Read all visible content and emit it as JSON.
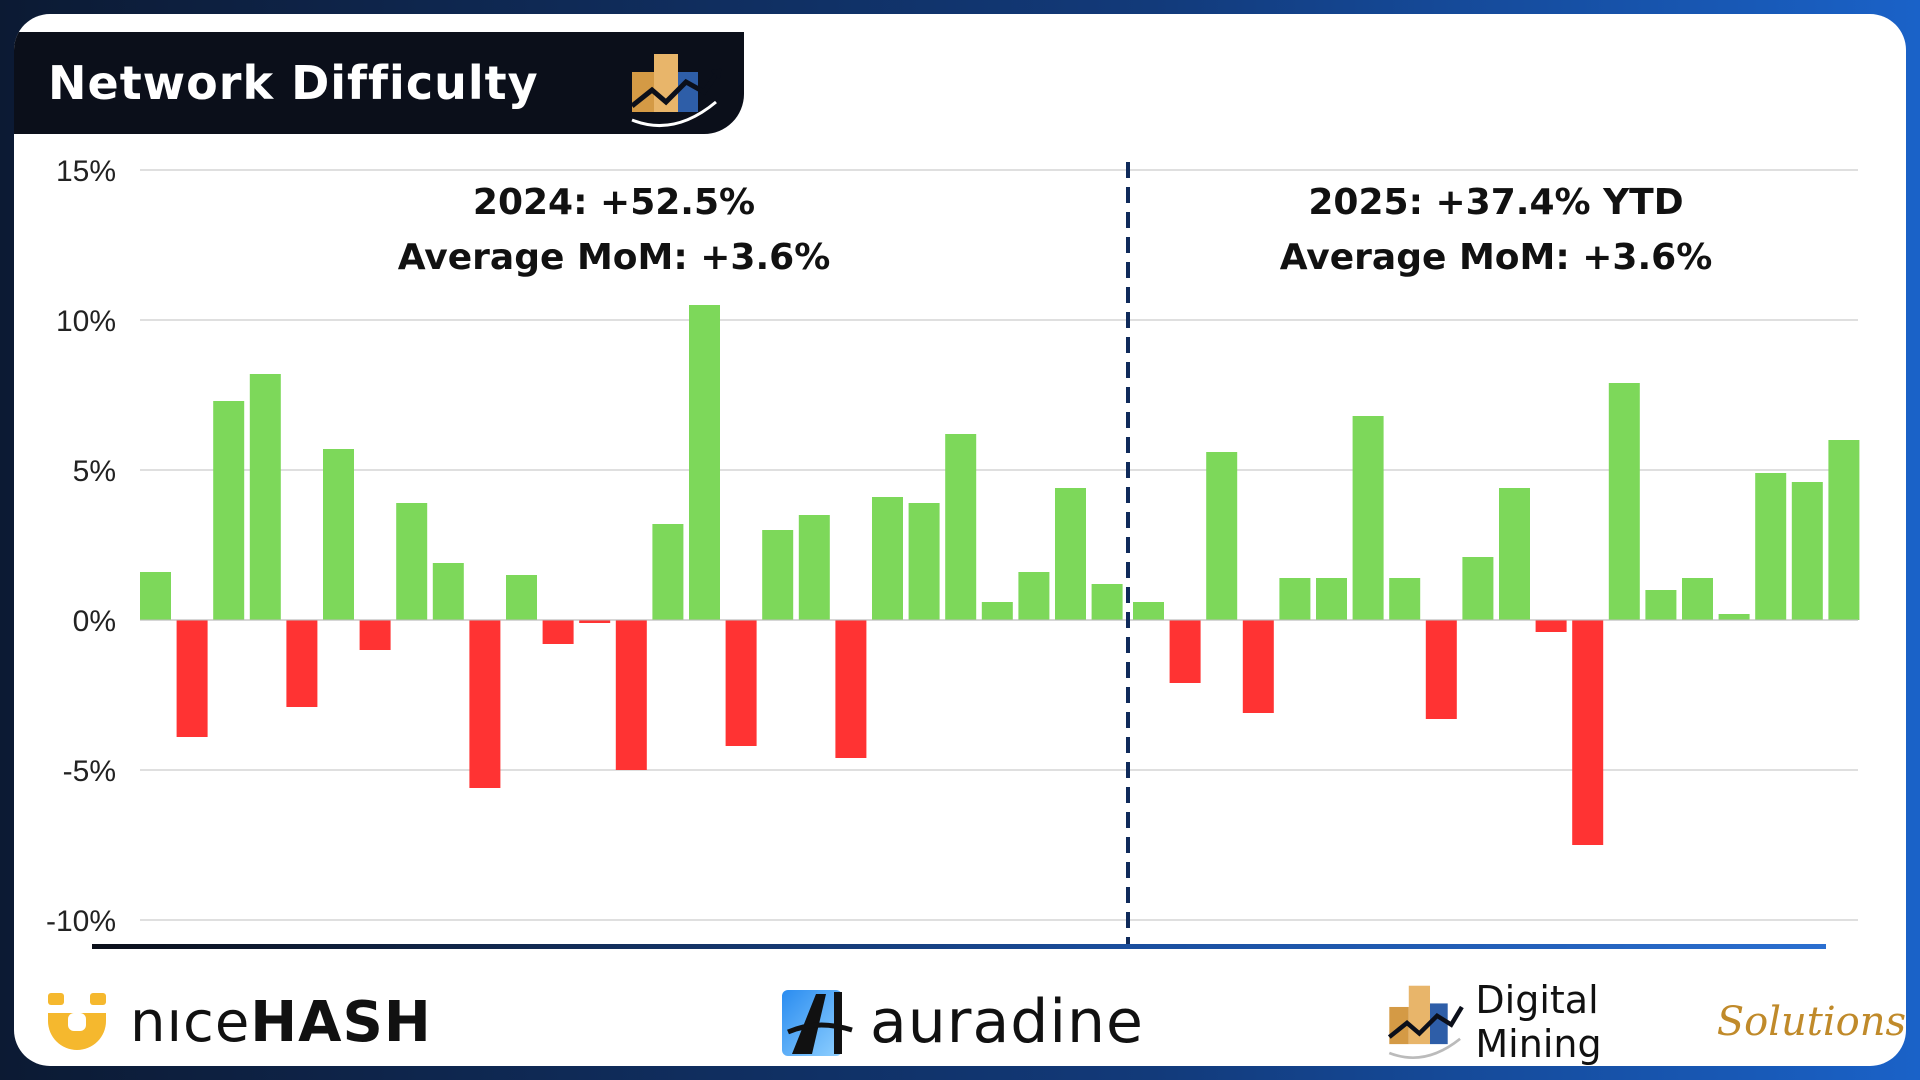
{
  "header": {
    "title": "Network Difficulty"
  },
  "colors": {
    "positive": "#7dd85a",
    "negative": "#ff3333",
    "divider": "#0f2a5a",
    "gold": "#c08a2a"
  },
  "chart_data": {
    "type": "bar",
    "title": "Network Difficulty",
    "xlabel": "",
    "ylabel": "",
    "ylim": [
      -10,
      15
    ],
    "yticks": [
      15,
      10,
      5,
      0,
      -5,
      -10
    ],
    "ytick_labels": [
      "15%",
      "10%",
      "5%",
      "0%",
      "-5%",
      "-10%"
    ],
    "grid": true,
    "series": [
      {
        "values": [
          1.6,
          -3.9,
          7.3,
          8.2,
          -2.9,
          5.7,
          -1.0,
          3.9,
          1.9,
          -5.6,
          1.5,
          -0.8,
          -0.1,
          -5.0,
          3.2,
          10.5,
          -4.2,
          3.0,
          3.5,
          -4.6,
          4.1,
          3.9,
          6.2,
          0.6,
          1.6,
          4.4,
          1.2
        ]
      },
      {
        "values": [
          0.6,
          -2.1,
          5.6,
          -3.1,
          1.4,
          1.4,
          6.8,
          1.4,
          -3.3,
          2.1,
          4.4,
          -0.4,
          -7.5,
          7.9,
          1.0,
          1.4,
          0.2,
          4.9,
          4.6,
          6.0
        ]
      }
    ],
    "annotations": [
      {
        "line1": "2024: +52.5%",
        "line2": "Average MoM: +3.6%"
      },
      {
        "line1": "2025: +37.4% YTD",
        "line2": "Average MoM: +3.6%"
      }
    ]
  },
  "footer": {
    "nicehash": {
      "part1": "nıce",
      "part2": "HASH"
    },
    "auradine": {
      "text": "auradine"
    },
    "dms": {
      "part1": "Digital Mining",
      "part2": "Solutions"
    }
  }
}
